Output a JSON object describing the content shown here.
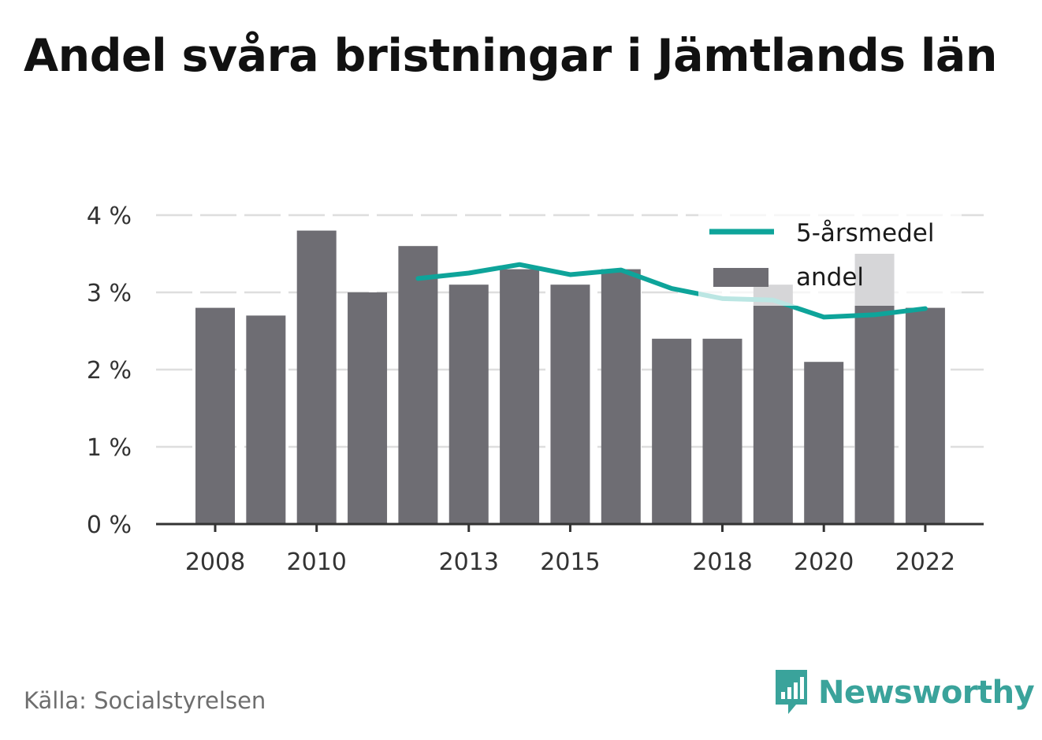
{
  "title": "Andel svåra bristningar i Jämtlands län",
  "source": "Källa: Socialstyrelsen",
  "brand": "Newsworthy",
  "colors": {
    "bar": "#6e6d73",
    "line": "#0ea49a",
    "grid": "#dedede",
    "axis": "#333333"
  },
  "chart_data": {
    "type": "bar",
    "title": "Andel svåra bristningar i Jämtlands län",
    "x": [
      2008,
      2009,
      2010,
      2011,
      2012,
      2013,
      2014,
      2015,
      2016,
      2017,
      2018,
      2019,
      2020,
      2021,
      2022
    ],
    "x_tick_labels": [
      "2008",
      "2010",
      "2013",
      "2015",
      "2018",
      "2020",
      "2022"
    ],
    "y_tick_labels": [
      "0 %",
      "1 %",
      "2 %",
      "3 %",
      "4 %"
    ],
    "ylim": [
      0,
      4
    ],
    "grid": true,
    "legend_position": "top-right",
    "series": [
      {
        "name": "andel",
        "type": "bar",
        "values": [
          2.8,
          2.7,
          3.8,
          3.0,
          3.6,
          3.1,
          3.3,
          3.1,
          3.3,
          2.4,
          2.4,
          3.1,
          2.1,
          3.5,
          2.8
        ]
      },
      {
        "name": "5-årsmedel",
        "type": "line",
        "values": [
          null,
          null,
          null,
          null,
          3.18,
          3.25,
          3.36,
          3.23,
          3.29,
          3.05,
          2.92,
          2.9,
          2.68,
          2.71,
          2.79
        ]
      }
    ]
  }
}
